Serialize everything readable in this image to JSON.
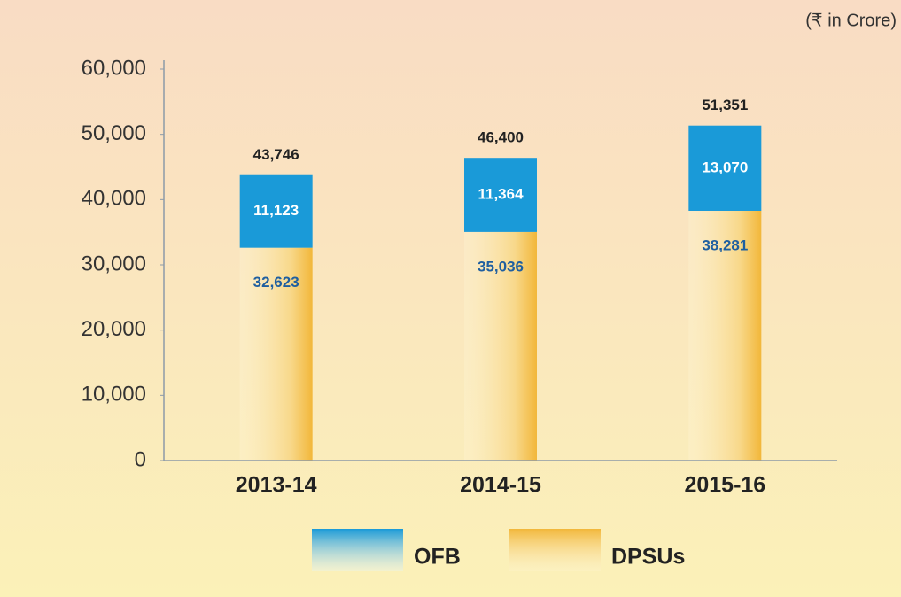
{
  "chart_data": {
    "type": "stacked_bar",
    "unit_label": "(₹ in Crore)",
    "categories": [
      "2013-14",
      "2014-15",
      "2015-16"
    ],
    "series": [
      {
        "name": "DPSUs",
        "color": "#f2b73a",
        "values": [
          32623,
          35036,
          38281
        ],
        "value_labels": [
          "32,623",
          "35,036",
          "38,281"
        ]
      },
      {
        "name": "OFB",
        "color": "#1a9ad8",
        "values": [
          11123,
          11364,
          13070
        ],
        "value_labels": [
          "11,123",
          "11,364",
          "13,070"
        ]
      }
    ],
    "totals": [
      43746,
      46400,
      51351
    ],
    "total_labels": [
      "43,746",
      "46,400",
      "51,351"
    ],
    "ylim": [
      0,
      60000
    ],
    "yticks": [
      0,
      {
        "value": 10000,
        "label": "10,000"
      },
      {
        "value": 20000,
        "label": "20,000"
      },
      {
        "value": 30000,
        "label": "30,000"
      },
      {
        "value": 40000,
        "label": "40,000"
      },
      {
        "value": 50000,
        "label": "50,000"
      },
      {
        "value": 60000,
        "label": "60,000"
      }
    ],
    "legend": "bottom"
  }
}
